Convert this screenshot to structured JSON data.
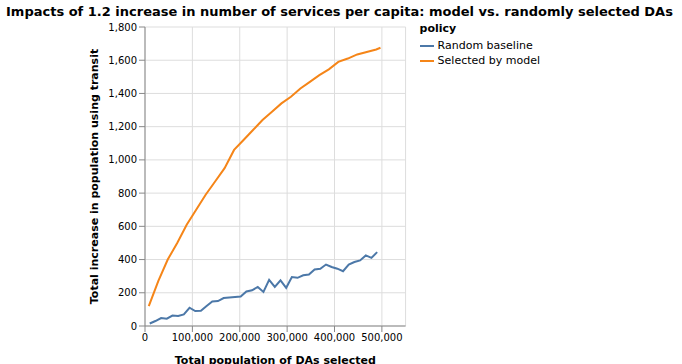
{
  "chart_data": {
    "type": "line",
    "title": "Impacts of 1.2 increase in number of services per capita: model vs. randomly selected DAs",
    "x_label": "Total population of DAs selected",
    "y_label": "Total increase in population using transit",
    "legend_title": "policy",
    "legend": "right",
    "grid": true,
    "xlim": [
      0,
      550000
    ],
    "xticks": [
      0,
      {
        "value": 100000,
        "label": "100,000"
      },
      {
        "value": 200000,
        "label": "200,000"
      },
      {
        "value": 300000,
        "label": "300,000"
      },
      {
        "value": 400000,
        "label": "400,000"
      },
      {
        "value": 500000,
        "label": "500,000"
      }
    ],
    "ylim": [
      0,
      1800
    ],
    "yticks": [
      0,
      200,
      400,
      600,
      800,
      {
        "value": 1000,
        "label": "1,000"
      },
      {
        "value": 1200,
        "label": "1,200"
      },
      {
        "value": 1400,
        "label": "1,400"
      },
      {
        "value": 1600,
        "label": "1,600"
      },
      {
        "value": 1800,
        "label": "1,800"
      }
    ],
    "series": [
      {
        "name": "Random baseline",
        "color": "#4c78a8",
        "x": [
          10000,
          22000,
          34000,
          46000,
          58000,
          70000,
          82000,
          94000,
          106000,
          118000,
          130000,
          142000,
          154000,
          166000,
          178000,
          190000,
          202000,
          214000,
          226000,
          238000,
          250000,
          262000,
          274000,
          286000,
          298000,
          310000,
          322000,
          334000,
          346000,
          358000,
          370000,
          382000,
          394000,
          406000,
          418000,
          430000,
          442000,
          454000,
          466000,
          478000,
          490000
        ],
        "values": [
          15,
          30,
          48,
          44,
          63,
          60,
          70,
          110,
          90,
          92,
          120,
          148,
          150,
          168,
          172,
          175,
          178,
          208,
          215,
          235,
          205,
          278,
          235,
          275,
          230,
          295,
          290,
          305,
          310,
          340,
          345,
          370,
          355,
          345,
          330,
          370,
          385,
          395,
          425,
          410,
          445
        ]
      },
      {
        "name": "Selected by model",
        "color": "#f58518",
        "x": [
          8000,
          28000,
          48000,
          68000,
          88000,
          108000,
          128000,
          148000,
          168000,
          188000,
          208000,
          228000,
          248000,
          268000,
          288000,
          308000,
          328000,
          348000,
          368000,
          388000,
          408000,
          428000,
          448000,
          468000,
          488000,
          497000
        ],
        "values": [
          120,
          270,
          400,
          500,
          610,
          700,
          790,
          870,
          950,
          1060,
          1120,
          1180,
          1240,
          1290,
          1340,
          1380,
          1430,
          1470,
          1510,
          1545,
          1590,
          1610,
          1635,
          1650,
          1665,
          1675
        ]
      }
    ]
  }
}
